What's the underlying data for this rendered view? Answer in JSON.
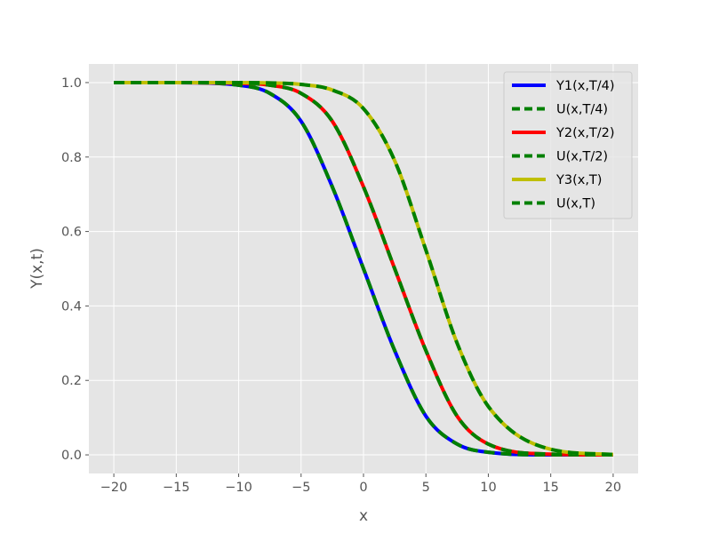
{
  "chart_data": {
    "type": "line",
    "title": "",
    "xlabel": "x",
    "ylabel": "Y(x,t)",
    "xlim": [
      -22,
      22
    ],
    "ylim": [
      -0.05,
      1.05
    ],
    "x_ticks": [
      -20,
      -15,
      -10,
      -5,
      0,
      5,
      10,
      15,
      20
    ],
    "x_tick_labels": [
      "−20",
      "−15",
      "−10",
      "−5",
      "0",
      "5",
      "10",
      "15",
      "20"
    ],
    "y_ticks": [
      0.0,
      0.2,
      0.4,
      0.6,
      0.8,
      1.0
    ],
    "y_tick_labels": [
      "0.0",
      "0.2",
      "0.4",
      "0.6",
      "0.8",
      "1.0"
    ],
    "x_range": [
      -20,
      20
    ],
    "grid": true,
    "legend_position": "top-right",
    "series": [
      {
        "name": "Y1(x,T/4)",
        "color": "#0000ff",
        "style": "solid",
        "x": [
          -20,
          -15,
          -10,
          -7.5,
          -5,
          -2.5,
          0,
          2.5,
          5,
          7.5,
          10,
          15,
          20
        ],
        "y": [
          1.0,
          1.0,
          0.993,
          0.971,
          0.896,
          0.72,
          0.5,
          0.28,
          0.104,
          0.029,
          0.007,
          0.0,
          0.0
        ]
      },
      {
        "name": "U(x,T/4)",
        "color": "#008000",
        "style": "dashed",
        "x": [
          -20,
          -15,
          -10,
          -7.5,
          -5,
          -2.5,
          0,
          2.5,
          5,
          7.5,
          10,
          15,
          20
        ],
        "y": [
          1.0,
          1.0,
          0.993,
          0.971,
          0.896,
          0.72,
          0.5,
          0.28,
          0.104,
          0.029,
          0.007,
          0.0,
          0.0
        ]
      },
      {
        "name": "Y2(x,T/2)",
        "color": "#ff0000",
        "style": "solid",
        "x": [
          -20,
          -15,
          -10,
          -7.5,
          -5,
          -2.5,
          0,
          2.5,
          5,
          7.5,
          10,
          15,
          20
        ],
        "y": [
          1.0,
          1.0,
          0.998,
          0.993,
          0.971,
          0.896,
          0.72,
          0.5,
          0.28,
          0.104,
          0.029,
          0.002,
          0.0
        ]
      },
      {
        "name": "U(x,T/2)",
        "color": "#008000",
        "style": "dashed",
        "x": [
          -20,
          -15,
          -10,
          -7.5,
          -5,
          -2.5,
          0,
          2.5,
          5,
          7.5,
          10,
          15,
          20
        ],
        "y": [
          1.0,
          1.0,
          0.998,
          0.993,
          0.971,
          0.896,
          0.72,
          0.5,
          0.28,
          0.104,
          0.029,
          0.002,
          0.0
        ]
      },
      {
        "name": "Y3(x,T)",
        "color": "#bfbf00",
        "style": "solid",
        "x": [
          -20,
          -15,
          -10,
          -7.5,
          -5,
          -2.5,
          0,
          2.5,
          5,
          7.5,
          10,
          15,
          20
        ],
        "y": [
          1.0,
          1.0,
          1.0,
          0.999,
          0.995,
          0.98,
          0.93,
          0.79,
          0.55,
          0.3,
          0.13,
          0.015,
          0.001
        ]
      },
      {
        "name": "U(x,T)",
        "color": "#008000",
        "style": "dashed",
        "x": [
          -20,
          -15,
          -10,
          -7.5,
          -5,
          -2.5,
          0,
          2.5,
          5,
          7.5,
          10,
          15,
          20
        ],
        "y": [
          1.0,
          1.0,
          1.0,
          0.999,
          0.995,
          0.98,
          0.93,
          0.79,
          0.55,
          0.3,
          0.13,
          0.015,
          0.001
        ]
      }
    ]
  }
}
